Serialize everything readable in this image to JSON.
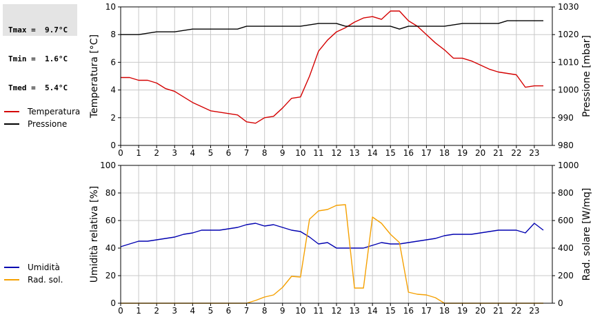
{
  "stats": {
    "tmax": "Tmax =  9.7°C",
    "tmin": "Tmin =  1.6°C",
    "tmed": "Tmed =  5.4°C"
  },
  "legend_top": [
    {
      "label": "Temperatura",
      "color": "#d40000"
    },
    {
      "label": "Pressione",
      "color": "#000000"
    }
  ],
  "legend_bottom": [
    {
      "label": "Umidità",
      "color": "#0000b0"
    },
    {
      "label": "Rad. sol.",
      "color": "#f5a000"
    }
  ],
  "chart_data": [
    {
      "type": "line",
      "xlim": [
        0,
        24
      ],
      "xticks": [
        0,
        1,
        2,
        3,
        4,
        5,
        6,
        7,
        8,
        9,
        10,
        11,
        12,
        13,
        14,
        15,
        16,
        17,
        18,
        19,
        20,
        21,
        22,
        23
      ],
      "ylabel_left": "Temperatura [°C]",
      "ylabel_right": "Pressione [mbar]",
      "ylim_left": [
        0,
        10
      ],
      "yticks_left": [
        0,
        2,
        4,
        6,
        8,
        10
      ],
      "ylim_right": [
        980,
        1030
      ],
      "yticks_right": [
        980,
        990,
        1000,
        1010,
        1020,
        1030
      ],
      "grid": true,
      "series": [
        {
          "name": "Temperatura",
          "axis": "left",
          "color": "#d40000",
          "x": [
            0,
            0.5,
            1,
            1.5,
            2,
            2.5,
            3,
            3.5,
            4,
            4.5,
            5,
            5.5,
            6,
            6.5,
            7,
            7.5,
            8,
            8.5,
            9,
            9.5,
            10,
            10.5,
            11,
            11.5,
            12,
            12.5,
            13,
            13.5,
            14,
            14.5,
            15,
            15.5,
            16,
            16.5,
            17,
            17.5,
            18,
            18.5,
            19,
            19.5,
            20,
            20.5,
            21,
            21.5,
            22,
            22.5,
            23,
            23.5
          ],
          "y": [
            4.9,
            4.9,
            4.7,
            4.7,
            4.5,
            4.1,
            3.9,
            3.5,
            3.1,
            2.8,
            2.5,
            2.4,
            2.3,
            2.2,
            1.7,
            1.6,
            2.0,
            2.1,
            2.7,
            3.4,
            3.5,
            5.0,
            6.8,
            7.6,
            8.2,
            8.5,
            8.9,
            9.2,
            9.3,
            9.1,
            9.7,
            9.7,
            9.0,
            8.6,
            8.0,
            7.4,
            6.9,
            6.3,
            6.3,
            6.1,
            5.8,
            5.5,
            5.3,
            5.2,
            5.1,
            4.2,
            4.3,
            4.3
          ]
        },
        {
          "name": "Pressione",
          "axis": "right",
          "color": "#000000",
          "x": [
            0,
            1,
            2,
            3,
            4,
            5,
            6,
            6.5,
            7,
            8,
            9,
            10,
            11,
            12,
            12.5,
            13,
            14,
            15,
            15.5,
            16,
            17,
            18,
            19,
            20,
            21,
            21.5,
            22,
            23,
            23.5
          ],
          "y": [
            1020,
            1020,
            1021,
            1021,
            1022,
            1022,
            1022,
            1022,
            1023,
            1023,
            1023,
            1023,
            1024,
            1024,
            1023,
            1023,
            1023,
            1023,
            1022,
            1023,
            1023,
            1023,
            1024,
            1024,
            1024,
            1025,
            1025,
            1025,
            1025
          ]
        }
      ]
    },
    {
      "type": "line",
      "xlim": [
        0,
        24
      ],
      "xticks": [
        0,
        1,
        2,
        3,
        4,
        5,
        6,
        7,
        8,
        9,
        10,
        11,
        12,
        13,
        14,
        15,
        16,
        17,
        18,
        19,
        20,
        21,
        22,
        23
      ],
      "ylabel_left": "Umidità relativa [%]",
      "ylabel_right": "Rad. solare [W/mq]",
      "ylim_left": [
        0,
        100
      ],
      "yticks_left": [
        0,
        20,
        40,
        60,
        80,
        100
      ],
      "ylim_right": [
        0,
        1000
      ],
      "yticks_right": [
        0,
        200,
        400,
        600,
        800,
        1000
      ],
      "grid": true,
      "series": [
        {
          "name": "Umidità",
          "axis": "left",
          "color": "#0000b0",
          "x": [
            0,
            0.5,
            1,
            1.5,
            2,
            2.5,
            3,
            3.5,
            4,
            4.5,
            5,
            5.5,
            6,
            6.5,
            7,
            7.5,
            8,
            8.5,
            9,
            9.5,
            10,
            10.5,
            11,
            11.5,
            12,
            12.5,
            13,
            13.5,
            14,
            14.5,
            15,
            15.5,
            16,
            16.5,
            17,
            17.5,
            18,
            18.5,
            19,
            19.5,
            20,
            20.5,
            21,
            21.5,
            22,
            22.5,
            23,
            23.5
          ],
          "y": [
            41,
            43,
            45,
            45,
            46,
            47,
            48,
            50,
            51,
            53,
            53,
            53,
            54,
            55,
            57,
            58,
            56,
            57,
            55,
            53,
            52,
            48,
            43,
            44,
            40,
            40,
            40,
            40,
            42,
            44,
            43,
            43,
            44,
            45,
            46,
            47,
            49,
            50,
            50,
            50,
            51,
            52,
            53,
            53,
            53,
            51,
            58,
            53
          ]
        },
        {
          "name": "Rad. sol.",
          "axis": "right",
          "color": "#f5a000",
          "x": [
            0,
            7,
            7.5,
            8,
            8.5,
            9,
            9.5,
            10,
            10.5,
            11,
            11.5,
            12,
            12.5,
            13,
            13.5,
            14,
            14.5,
            15,
            15.5,
            16,
            16.5,
            17,
            17.5,
            18,
            18.5,
            19,
            20,
            21,
            22,
            23,
            23.5
          ],
          "y": [
            0,
            0,
            20,
            45,
            60,
            115,
            195,
            190,
            610,
            670,
            680,
            710,
            715,
            110,
            110,
            625,
            580,
            500,
            440,
            80,
            65,
            60,
            40,
            0,
            0,
            0,
            0,
            0,
            0,
            0,
            0
          ]
        }
      ]
    }
  ]
}
